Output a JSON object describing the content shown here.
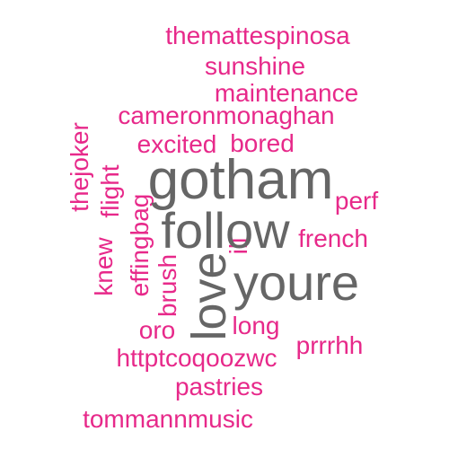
{
  "colors": {
    "background": "#ffffff",
    "pink": "#e7298a",
    "gray": "#666666"
  },
  "words": {
    "themattespinosa": "themattespinosa",
    "sunshine": "sunshine",
    "maintenance": "maintenance",
    "cameronmonaghan": "cameronmonaghan",
    "excited": "excited",
    "bored": "bored",
    "gotham": "gotham",
    "perf": "perf",
    "follow": "follow",
    "french": "french",
    "thejoker": "thejoker",
    "flight": "flight",
    "effingbag": "effingbag",
    "knew": "knew",
    "ill": "ill",
    "brush": "brush",
    "love": "love",
    "youre": "youre",
    "long": "long",
    "oro": "oro",
    "prrrhh": "prrrhh",
    "httptcoqoozwc": "httptcoqoozwc",
    "pastries": "pastries",
    "tommannmusic": "tommannmusic"
  }
}
